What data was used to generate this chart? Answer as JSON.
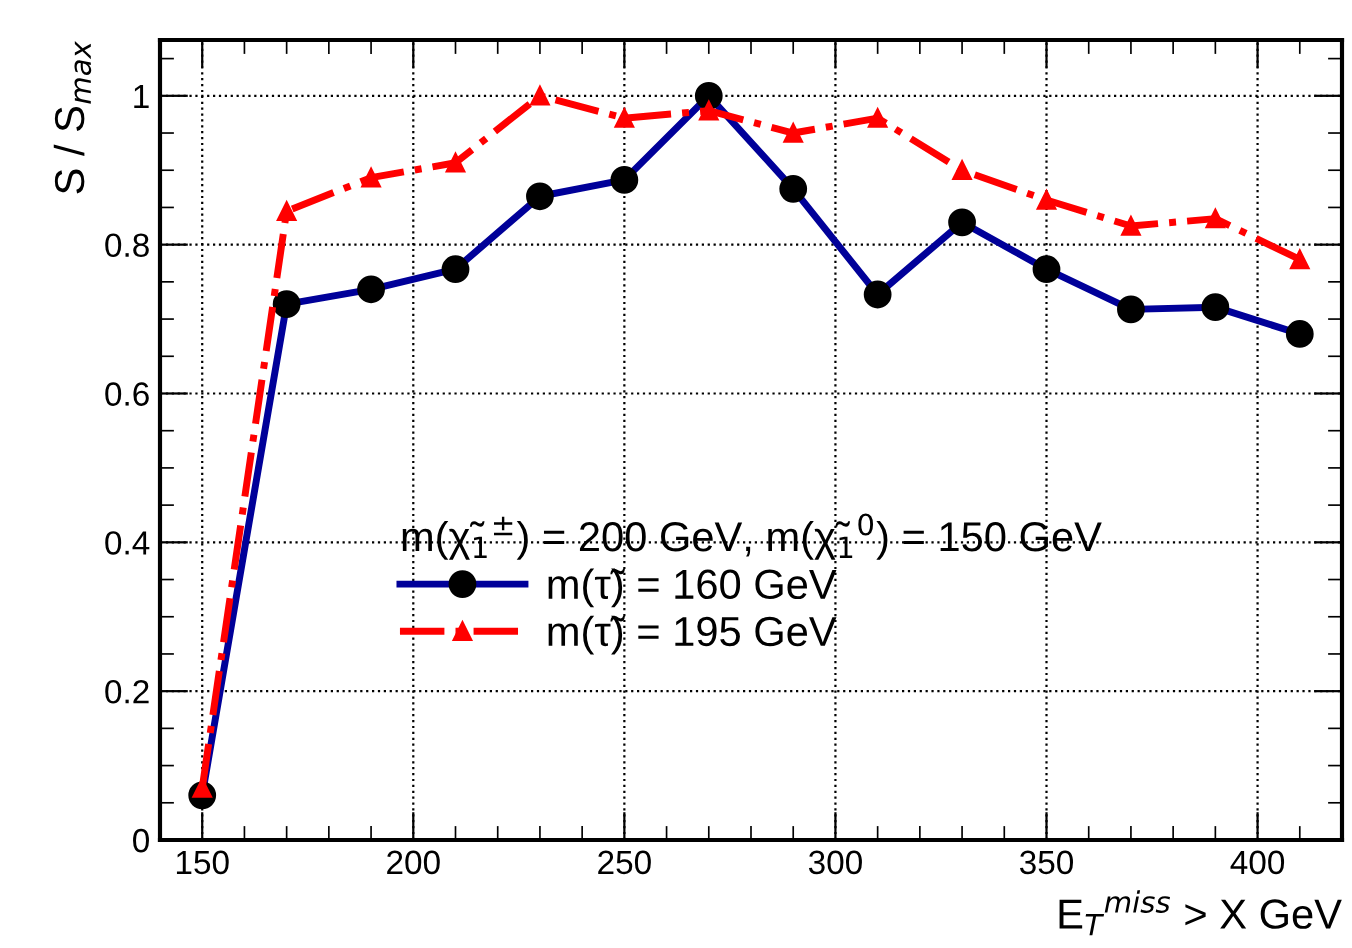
{
  "chart_data": {
    "type": "line",
    "xlabel": "E$_{T}$$^{miss}$ > X GeV",
    "ylabel": "S / S$_{max}$",
    "legend_title": "m(χ̃$_{1}$$^{±}$) = 200 GeV, m(χ̃$_{1}$$^{0}$) = 150 GeV",
    "x": [
      150,
      170,
      190,
      210,
      230,
      250,
      270,
      290,
      310,
      330,
      350,
      370,
      390,
      410
    ],
    "series": [
      {
        "name": "m(τ̃) = 160 GeV",
        "color": "#000099",
        "marker": "circle",
        "line_style": "solid",
        "values": [
          0.06,
          0.72,
          0.74,
          0.767,
          0.865,
          0.887,
          1.0,
          0.875,
          0.733,
          0.83,
          0.767,
          0.713,
          0.716,
          0.68
        ]
      },
      {
        "name": "m(τ̃) = 195 GeV",
        "color": "#ff0000",
        "marker": "triangle",
        "line_style": "dashdot",
        "values": [
          0.07,
          0.845,
          0.89,
          0.91,
          1.0,
          0.97,
          0.98,
          0.95,
          0.97,
          0.9,
          0.86,
          0.825,
          0.835,
          0.78
        ]
      }
    ],
    "xlim": [
      140,
      420
    ],
    "xticks": [
      150,
      200,
      250,
      300,
      350,
      400
    ],
    "ylim": [
      0,
      1.075
    ],
    "yticks": [
      0,
      0.2,
      0.4,
      0.6,
      0.8,
      1
    ],
    "grid": true,
    "legend": "center"
  }
}
